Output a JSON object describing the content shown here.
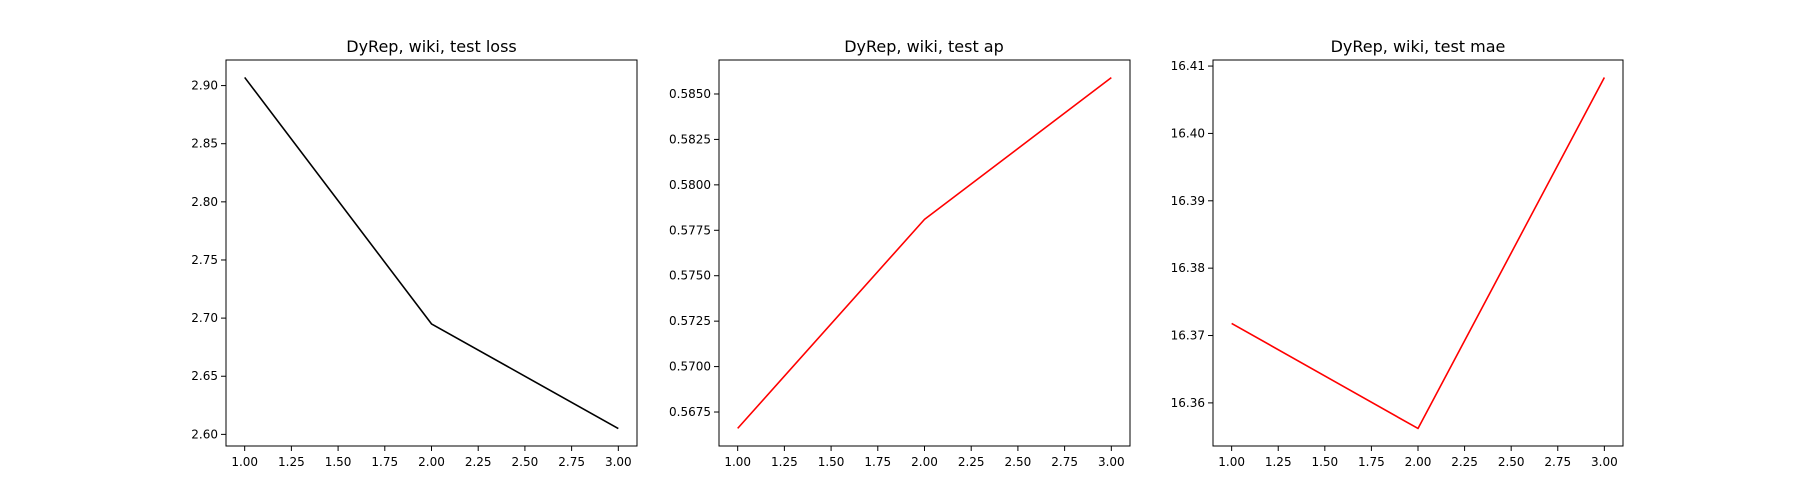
{
  "chart_data": [
    {
      "type": "line",
      "title": "DyRep, wiki, test loss",
      "xlabel": "",
      "ylabel": "",
      "x": [
        1.0,
        2.0,
        3.0
      ],
      "series": [
        {
          "values": [
            2.907,
            2.695,
            2.605
          ],
          "color": "#000000"
        }
      ],
      "xlim": [
        0.9,
        3.1
      ],
      "ylim": [
        2.59,
        2.922
      ],
      "xticks": [
        1.0,
        1.25,
        1.5,
        1.75,
        2.0,
        2.25,
        2.5,
        2.75,
        3.0
      ],
      "xtick_labels": [
        "1.00",
        "1.25",
        "1.50",
        "1.75",
        "2.00",
        "2.25",
        "2.50",
        "2.75",
        "3.00"
      ],
      "yticks": [
        2.6,
        2.65,
        2.7,
        2.75,
        2.8,
        2.85,
        2.9
      ],
      "ytick_labels": [
        "2.60",
        "2.65",
        "2.70",
        "2.75",
        "2.80",
        "2.85",
        "2.90"
      ],
      "grid": false,
      "legend": "none"
    },
    {
      "type": "line",
      "title": "DyRep, wiki, test ap",
      "xlabel": "",
      "ylabel": "",
      "x": [
        1.0,
        2.0,
        3.0
      ],
      "series": [
        {
          "values": [
            0.5666,
            0.5781,
            0.5859
          ],
          "color": "#ff0000"
        }
      ],
      "xlim": [
        0.9,
        3.1
      ],
      "ylim": [
        0.56563,
        0.58687
      ],
      "xticks": [
        1.0,
        1.25,
        1.5,
        1.75,
        2.0,
        2.25,
        2.5,
        2.75,
        3.0
      ],
      "xtick_labels": [
        "1.00",
        "1.25",
        "1.50",
        "1.75",
        "2.00",
        "2.25",
        "2.50",
        "2.75",
        "3.00"
      ],
      "yticks": [
        0.5675,
        0.57,
        0.5725,
        0.575,
        0.5775,
        0.58,
        0.5825,
        0.585
      ],
      "ytick_labels": [
        "0.5675",
        "0.5700",
        "0.5725",
        "0.5750",
        "0.5775",
        "0.5800",
        "0.5825",
        "0.5850"
      ],
      "grid": false,
      "legend": "none"
    },
    {
      "type": "line",
      "title": "DyRep, wiki, test mae",
      "xlabel": "",
      "ylabel": "",
      "x": [
        1.0,
        2.0,
        3.0
      ],
      "series": [
        {
          "values": [
            16.3718,
            16.3562,
            16.4083
          ],
          "color": "#ff0000"
        }
      ],
      "xlim": [
        0.9,
        3.1
      ],
      "ylim": [
        16.3536,
        16.4109
      ],
      "xticks": [
        1.0,
        1.25,
        1.5,
        1.75,
        2.0,
        2.25,
        2.5,
        2.75,
        3.0
      ],
      "xtick_labels": [
        "1.00",
        "1.25",
        "1.50",
        "1.75",
        "2.00",
        "2.25",
        "2.50",
        "2.75",
        "3.00"
      ],
      "yticks": [
        16.36,
        16.37,
        16.38,
        16.39,
        16.4,
        16.41
      ],
      "ytick_labels": [
        "16.36",
        "16.37",
        "16.38",
        "16.39",
        "16.40",
        "16.41"
      ],
      "grid": false,
      "legend": "none"
    }
  ]
}
